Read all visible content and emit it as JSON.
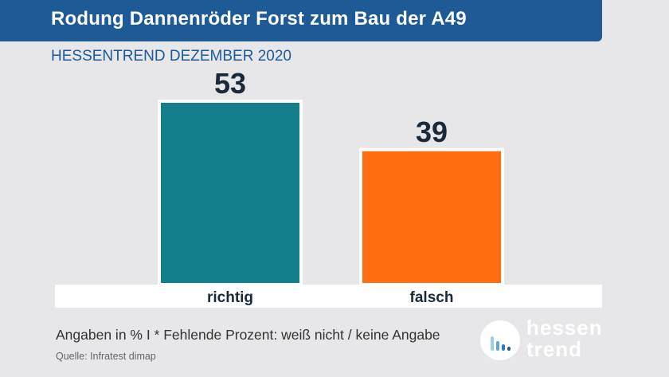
{
  "header": {
    "title": "Rodung Dannenröder Forst zum Bau der A49",
    "subtitle": "HESSENTREND DEZEMBER 2020"
  },
  "chart_data": {
    "type": "bar",
    "title": "Rodung Dannenröder Forst zum Bau der A49",
    "subtitle": "HESSENTREND DEZEMBER 2020",
    "categories": [
      "richtig",
      "falsch"
    ],
    "values": [
      53,
      39
    ],
    "colors": [
      "#137f8c",
      "#ff6d10"
    ],
    "xlabel": "",
    "ylabel": "",
    "ylim": [
      0,
      53
    ],
    "grid": false,
    "legend": "none",
    "data_labels": true
  },
  "footer": {
    "note": "Angaben in %  I * Fehlende Prozent: weiß nicht / keine Angabe",
    "source": "Quelle:   Infratest dimap"
  },
  "logo": {
    "line1": "hessen",
    "line2": "trend",
    "icon": "bar-chart-icon"
  },
  "colors": {
    "title_bar": "#1d5a96",
    "background": "#e7e7e9"
  }
}
